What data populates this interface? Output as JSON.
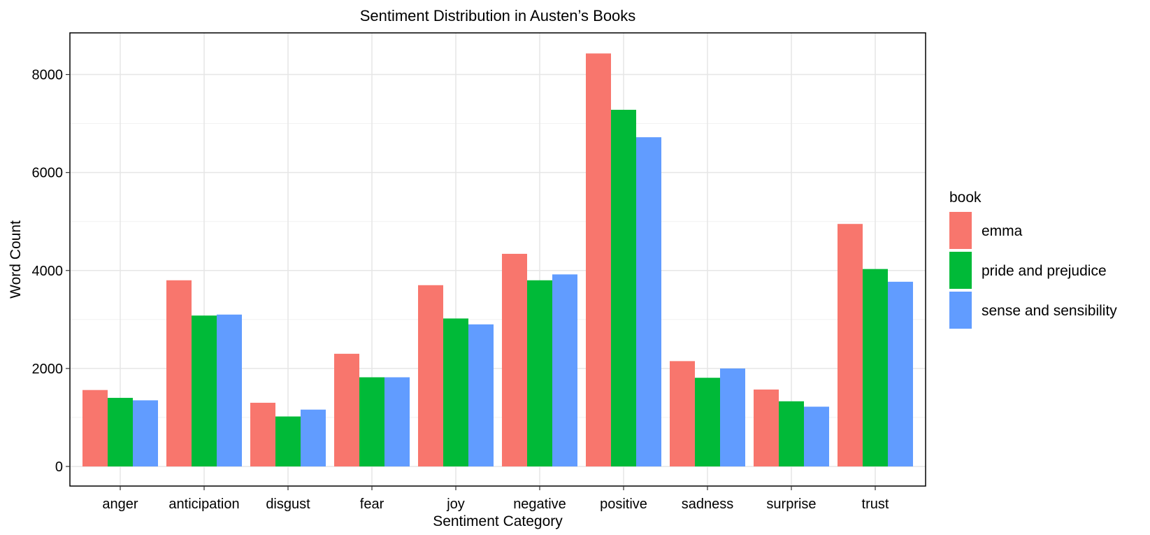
{
  "chart_data": {
    "type": "bar",
    "title": "Sentiment Distribution in Austen’s Books",
    "xlabel": "Sentiment Category",
    "ylabel": "Word Count",
    "ylim": [
      -400,
      8850
    ],
    "yticks": [
      0,
      2000,
      4000,
      6000,
      8000
    ],
    "grid": true,
    "legend_position": "right",
    "legend_title": "book",
    "categories": [
      "anger",
      "anticipation",
      "disgust",
      "fear",
      "joy",
      "negative",
      "positive",
      "sadness",
      "surprise",
      "trust"
    ],
    "series": [
      {
        "name": "emma",
        "color": "#F8766D",
        "values": [
          1560,
          3800,
          1300,
          2300,
          3700,
          4340,
          8430,
          2150,
          1570,
          4950
        ]
      },
      {
        "name": "pride and prejudice",
        "color": "#00BA38",
        "values": [
          1400,
          3080,
          1020,
          1820,
          3020,
          3800,
          7280,
          1810,
          1330,
          4030
        ]
      },
      {
        "name": "sense and sensibility",
        "color": "#619CFF",
        "values": [
          1350,
          3100,
          1160,
          1820,
          2900,
          3920,
          6720,
          2000,
          1220,
          3770
        ]
      }
    ]
  }
}
